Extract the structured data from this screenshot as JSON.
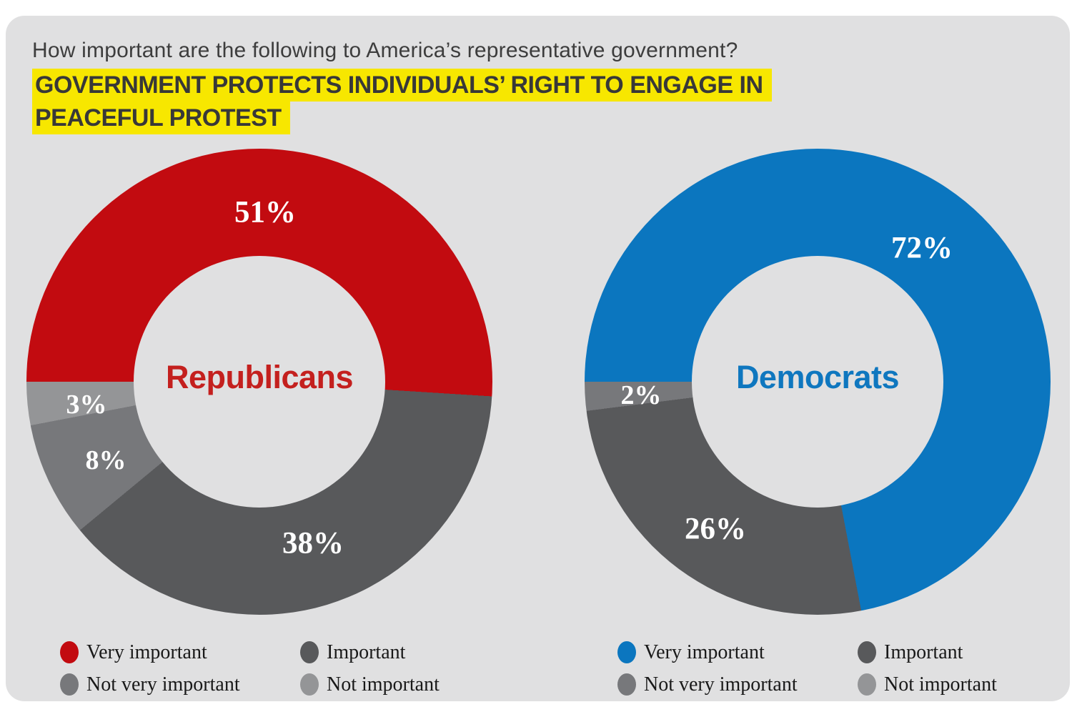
{
  "title": "How important are the following to America’s representative government?",
  "highlight": {
    "line1": "GOVERNMENT PROTECTS INDIVIDUALS’ RIGHT TO ENGAGE IN",
    "line2": "PEACEFUL PROTEST"
  },
  "colors": {
    "panel_bg": "#e0e0e1",
    "highlight_yellow": "#f7e700",
    "title_color": "#3d3d3d",
    "republicans_red": "#c20b10",
    "democrats_blue": "#0b76bf",
    "important_gray": "#58595b",
    "not_very_important_gray": "#77787b",
    "not_important_gray": "#949597"
  },
  "chart_data": [
    {
      "type": "pie",
      "subtype": "donut",
      "group": "Republicans",
      "center_label": "Republicans",
      "label_color": "#c4201e",
      "categories": [
        "Very important",
        "Important",
        "Not very important",
        "Not important"
      ],
      "values": [
        51,
        38,
        8,
        3
      ],
      "labels": [
        "51%",
        "38%",
        "8%",
        "3%"
      ],
      "colors": [
        "#c20b10",
        "#58595b",
        "#77787b",
        "#949597"
      ],
      "start_angle_deg": 270,
      "direction": "clockwise",
      "legend_position": "bottom"
    },
    {
      "type": "pie",
      "subtype": "donut",
      "group": "Democrats",
      "center_label": "Democrats",
      "label_color": "#0f77bf",
      "categories": [
        "Very important",
        "Important",
        "Not very important",
        "Not important"
      ],
      "values": [
        72,
        26,
        2,
        0
      ],
      "labels": [
        "72%",
        "26%",
        "2%"
      ],
      "colors": [
        "#0b76bf",
        "#58595b",
        "#77787b",
        "#949597"
      ],
      "start_angle_deg": 270,
      "direction": "clockwise",
      "legend_position": "bottom"
    }
  ]
}
